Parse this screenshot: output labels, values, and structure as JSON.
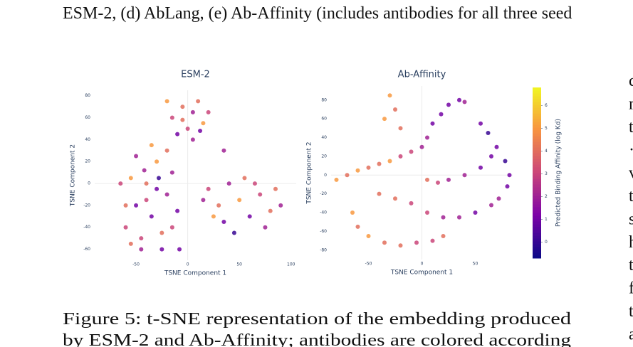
{
  "document": {
    "top_line": "ESM-2, (d) AbLang, (e) Ab-Affinity (includes antibodies for all three seed",
    "caption_lines": [
      "Figure 5: t-SNE representation of the embedding produced",
      "by ESM-2 and Ab-Affinity; antibodies are colored according"
    ],
    "right_column": [
      "c",
      "m",
      "t",
      "·",
      "v",
      "t",
      "s",
      "h",
      "t",
      "f",
      "t",
      "a"
    ]
  },
  "chart_data": [
    {
      "type": "scatter",
      "title": "ESM-2",
      "x_label": "TSNE Component 1",
      "y_label": "TSNE Component 2",
      "xlim": [
        -90,
        105
      ],
      "ylim": [
        -70,
        85
      ],
      "xticks": [
        -50,
        0,
        50,
        100
      ],
      "yticks": [
        -60,
        -40,
        -20,
        0,
        20,
        40,
        60,
        80
      ],
      "zeroline": true,
      "colorscale": [
        "#0d0887",
        "#7e03a8",
        "#cc4778",
        "#f89540",
        "#f0f921"
      ],
      "clim": [
        -0.7,
        6.8
      ],
      "x": [
        -15,
        -5,
        5,
        15,
        0,
        -10,
        10,
        20,
        -20,
        5,
        -5,
        12,
        -60,
        -50,
        -40,
        -30,
        -20,
        -45,
        -35,
        -25,
        -55,
        -65,
        -15,
        -30,
        -40,
        -20,
        -50,
        -10,
        -35,
        -45,
        -55,
        -25,
        -15,
        -60,
        -28,
        -42,
        20,
        30,
        40,
        50,
        60,
        70,
        80,
        90,
        35,
        55,
        45,
        25,
        65,
        75,
        85,
        15,
        35,
        -8
      ],
      "y": [
        60,
        70,
        65,
        55,
        50,
        45,
        75,
        65,
        75,
        40,
        58,
        48,
        -40,
        -20,
        0,
        20,
        -10,
        -50,
        -30,
        -45,
        5,
        0,
        10,
        -5,
        -15,
        30,
        25,
        -25,
        35,
        -60,
        -55,
        -60,
        -40,
        -20,
        5,
        12,
        -5,
        -20,
        0,
        -15,
        -30,
        -10,
        -25,
        -20,
        -35,
        5,
        -45,
        -30,
        0,
        -40,
        -5,
        -15,
        30,
        -60
      ],
      "color_values": [
        3,
        4,
        2,
        5,
        3,
        1,
        4,
        3,
        5,
        2,
        4,
        1,
        3,
        1,
        4,
        5,
        2,
        3,
        1,
        4,
        5,
        3,
        2,
        1,
        3,
        4,
        2,
        1,
        5,
        2,
        4,
        1,
        3,
        4,
        0,
        2,
        3,
        4,
        2,
        5,
        1,
        3,
        4,
        2,
        1,
        4,
        0,
        5,
        3,
        2,
        4,
        2,
        2,
        1
      ]
    },
    {
      "type": "scatter",
      "title": "Ab-Affinity",
      "x_label": "TSNE Component 1",
      "y_label": "TSNE Component 2",
      "xlim": [
        -85,
        85
      ],
      "ylim": [
        -90,
        95
      ],
      "xticks": [
        -50,
        0,
        50
      ],
      "yticks": [
        -80,
        -60,
        -40,
        -20,
        0,
        20,
        40,
        60,
        80
      ],
      "zeroline": true,
      "colorscale": [
        "#0d0887",
        "#7e03a8",
        "#cc4778",
        "#f89540",
        "#f0f921"
      ],
      "clim": [
        -0.7,
        6.8
      ],
      "colorbar": true,
      "colorbar_label": "Predicted Binding Affinity (log Kd)",
      "colorbar_ticks": [
        0,
        1,
        2,
        3,
        4,
        5,
        6
      ],
      "x": [
        -30,
        -25,
        -35,
        -20,
        -80,
        -70,
        -60,
        -50,
        -40,
        -30,
        -20,
        -10,
        0,
        5,
        10,
        18,
        25,
        35,
        40,
        55,
        62,
        70,
        78,
        82,
        80,
        72,
        5,
        15,
        25,
        40,
        55,
        65,
        -40,
        -25,
        -10,
        5,
        20,
        35,
        50,
        65,
        -65,
        -60,
        -50,
        -35,
        -20,
        -5,
        10,
        20
      ],
      "y": [
        85,
        70,
        60,
        50,
        -5,
        0,
        5,
        8,
        12,
        15,
        20,
        25,
        30,
        40,
        55,
        65,
        75,
        80,
        78,
        55,
        45,
        30,
        15,
        0,
        -12,
        -25,
        -5,
        -8,
        -5,
        0,
        8,
        20,
        -20,
        -25,
        -30,
        -40,
        -45,
        -45,
        -40,
        -32,
        -40,
        -55,
        -65,
        -72,
        -75,
        -72,
        -70,
        -65
      ],
      "color_values": [
        5,
        4,
        5,
        4,
        5,
        4,
        5,
        4,
        4,
        5,
        3,
        3,
        2,
        2,
        1,
        1,
        1,
        1,
        2,
        1,
        0,
        1,
        0,
        1,
        1,
        2,
        4,
        3,
        2,
        2,
        1,
        1,
        4,
        4,
        3,
        3,
        2,
        2,
        1,
        2,
        5,
        4,
        5,
        4,
        4,
        3,
        3,
        4
      ]
    }
  ]
}
